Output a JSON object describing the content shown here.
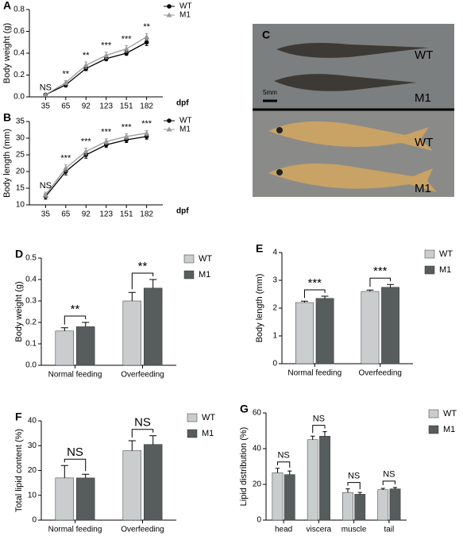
{
  "chart_data": [
    {
      "type": "line",
      "panel_label": "A",
      "ylabel": "Body weight (g)",
      "xlabel": "dpf",
      "categories": [
        "35",
        "65",
        "92",
        "123",
        "151",
        "182"
      ],
      "ylim": [
        0,
        0.8
      ],
      "yticks": [
        {
          "value": 0,
          "label": "0.0"
        },
        0.2,
        0.4,
        0.6,
        0.8
      ],
      "series": [
        {
          "name": "WT",
          "color": "#000000",
          "marker": "circle",
          "values": [
            0.02,
            0.11,
            0.26,
            0.35,
            0.4,
            0.5
          ],
          "errors": [
            0.005,
            0.02,
            0.02,
            0.02,
            0.02,
            0.03
          ]
        },
        {
          "name": "M1",
          "color": "#9a9a9a",
          "marker": "triangle",
          "values": [
            0.02,
            0.13,
            0.29,
            0.38,
            0.44,
            0.55
          ],
          "errors": [
            0.005,
            0.02,
            0.03,
            0.03,
            0.03,
            0.03
          ]
        }
      ],
      "annotations": [
        "NS",
        "**",
        "**",
        "***",
        "***",
        "**"
      ]
    },
    {
      "type": "line",
      "panel_label": "B",
      "ylabel": "Body length (mm)",
      "xlabel": "dpf",
      "categories": [
        "35",
        "65",
        "92",
        "123",
        "151",
        "182"
      ],
      "ylim": [
        10,
        35
      ],
      "yticks": [
        10,
        15,
        20,
        25,
        30,
        35
      ],
      "series": [
        {
          "name": "WT",
          "color": "#000000",
          "marker": "circle",
          "values": [
            12.5,
            20,
            25,
            28,
            29.5,
            30.5
          ],
          "errors": [
            0.8,
            1,
            1,
            0.8,
            0.8,
            0.8
          ]
        },
        {
          "name": "M1",
          "color": "#9a9a9a",
          "marker": "triangle",
          "values": [
            13,
            21,
            26,
            29,
            30.5,
            31.5
          ],
          "errors": [
            0.8,
            1,
            1,
            0.8,
            0.8,
            0.8
          ]
        }
      ],
      "annotations": [
        "NS",
        "***",
        "***",
        "***",
        "***",
        "***"
      ]
    },
    {
      "type": "bar",
      "panel_label": "D",
      "ylabel": "Body weight (g)",
      "categories": [
        "Normal feeding",
        "Overfeeding"
      ],
      "ylim": [
        0,
        0.5
      ],
      "yticks": [
        {
          "value": 0,
          "label": "0.0"
        },
        0.1,
        0.2,
        0.3,
        0.4,
        0.5
      ],
      "series": [
        {
          "name": "WT",
          "color": "#c9cdcd",
          "values": [
            0.16,
            0.3
          ],
          "errors": [
            0.015,
            0.04
          ]
        },
        {
          "name": "M1",
          "color": "#575c5c",
          "values": [
            0.18,
            0.36
          ],
          "errors": [
            0.02,
            0.04
          ]
        }
      ],
      "annotations": [
        "**",
        "**"
      ]
    },
    {
      "type": "bar",
      "panel_label": "E",
      "ylabel": "Body length (mm)",
      "categories": [
        "Normal feeding",
        "Overfeeding"
      ],
      "ylim": [
        0,
        4
      ],
      "yticks": [
        0,
        1,
        2,
        3,
        4
      ],
      "series": [
        {
          "name": "WT",
          "color": "#c9cdcd",
          "values": [
            2.2,
            2.6
          ],
          "errors": [
            0.05,
            0.05
          ]
        },
        {
          "name": "M1",
          "color": "#575c5c",
          "values": [
            2.35,
            2.75
          ],
          "errors": [
            0.08,
            0.1
          ]
        }
      ],
      "annotations": [
        "***",
        "***"
      ]
    },
    {
      "type": "bar",
      "panel_label": "F",
      "ylabel": "Total lipid content (%)",
      "categories": [
        "Normal feeding",
        "Overfeeding"
      ],
      "ylim": [
        0,
        40
      ],
      "yticks": [
        0,
        10,
        20,
        30,
        40
      ],
      "series": [
        {
          "name": "WT",
          "color": "#c9cdcd",
          "values": [
            17,
            28
          ],
          "errors": [
            5,
            4
          ]
        },
        {
          "name": "M1",
          "color": "#575c5c",
          "values": [
            17,
            30.5
          ],
          "errors": [
            1.5,
            3.5
          ]
        }
      ],
      "annotations": [
        "NS",
        "NS"
      ]
    },
    {
      "type": "bar",
      "panel_label": "G",
      "ylabel": "Lipid distribution (%)",
      "categories": [
        "head",
        "viscera",
        "muscle",
        "tail"
      ],
      "ylim": [
        0,
        60
      ],
      "yticks": [
        0,
        20,
        40,
        60
      ],
      "series": [
        {
          "name": "WT",
          "color": "#c9cdcd",
          "values": [
            26.5,
            45,
            15.5,
            17
          ],
          "errors": [
            2.5,
            2,
            2,
            0.8
          ]
        },
        {
          "name": "M1",
          "color": "#575c5c",
          "values": [
            25.5,
            47,
            14.5,
            17.5
          ],
          "errors": [
            2,
            2.5,
            1,
            0.8
          ]
        }
      ],
      "annotations": [
        "NS",
        "NS",
        "NS",
        "NS"
      ]
    }
  ],
  "photo": {
    "panel_label": "C",
    "scale_label": "5mm",
    "labels": [
      "WT",
      "M1",
      "WT",
      "M1"
    ]
  }
}
